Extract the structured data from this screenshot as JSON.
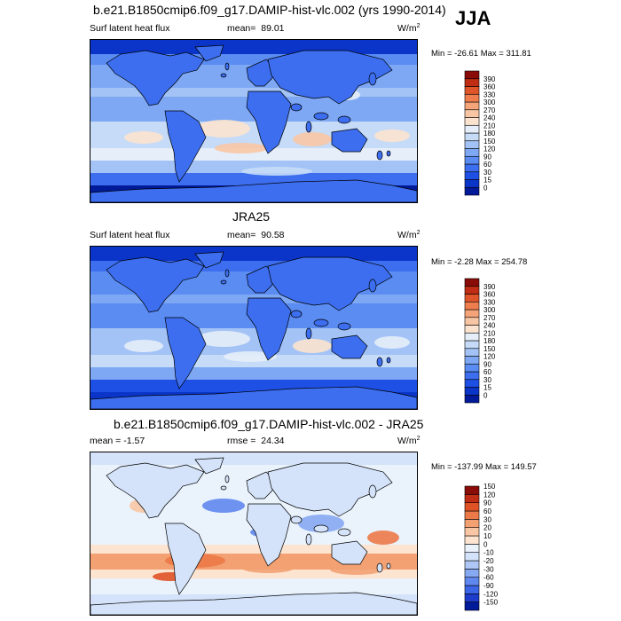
{
  "season": "JJA",
  "colors": {
    "seq": [
      "#001a99",
      "#0a35c8",
      "#1e50e6",
      "#3c6eef",
      "#5a8cf2",
      "#7ea8f4",
      "#a3c3f6",
      "#c5dbf8",
      "#e6eefa",
      "#fbe3cf",
      "#f8c6a4",
      "#f5a479",
      "#ef7d4d",
      "#e0542a",
      "#c02c14",
      "#8a0c08"
    ],
    "div": [
      "#001a99",
      "#1e3ccc",
      "#3c64e6",
      "#5f87ee",
      "#86a9f2",
      "#aec7f6",
      "#d4e3fa",
      "#eaf2fc",
      "#fce4d0",
      "#f8c6a4",
      "#f3a173",
      "#ec7a48",
      "#df5226",
      "#c02c14",
      "#8a0c08"
    ]
  },
  "chart_data": [
    {
      "type": "heatmap",
      "title": "b.e21.B1850cmip6.f09_g17.DAMIP-hist-vlc.002 (yrs 1990-2014)",
      "left_label": "Surf latent heat flux",
      "mean_label": "mean=",
      "mean": "89.01",
      "units": "W/m",
      "units_sup": "2",
      "minmax": "Min = -26.61 Max = 311.81",
      "levels": [
        "0",
        "15",
        "30",
        "60",
        "90",
        "120",
        "150",
        "180",
        "210",
        "240",
        "270",
        "300",
        "330",
        "360",
        "390"
      ]
    },
    {
      "type": "heatmap",
      "title": "JRA25",
      "left_label": "Surf latent heat flux",
      "mean_label": "mean=",
      "mean": "90.58",
      "units": "W/m",
      "units_sup": "2",
      "minmax": "Min = -2.28 Max = 254.78",
      "levels": [
        "0",
        "15",
        "30",
        "60",
        "90",
        "120",
        "150",
        "180",
        "210",
        "240",
        "270",
        "300",
        "330",
        "360",
        "390"
      ]
    },
    {
      "type": "heatmap",
      "title": "b.e21.B1850cmip6.f09_g17.DAMIP-hist-vlc.002 - JRA25",
      "left_label": "mean = -1.57",
      "mean_label": "rmse =",
      "mean": "24.34",
      "units": "W/m",
      "units_sup": "2",
      "minmax": "Min = -137.99 Max = 149.57",
      "levels": [
        "-150",
        "-120",
        "-90",
        "-60",
        "-30",
        "-20",
        "-10",
        "0",
        "10",
        "20",
        "30",
        "60",
        "90",
        "120",
        "150"
      ]
    }
  ]
}
